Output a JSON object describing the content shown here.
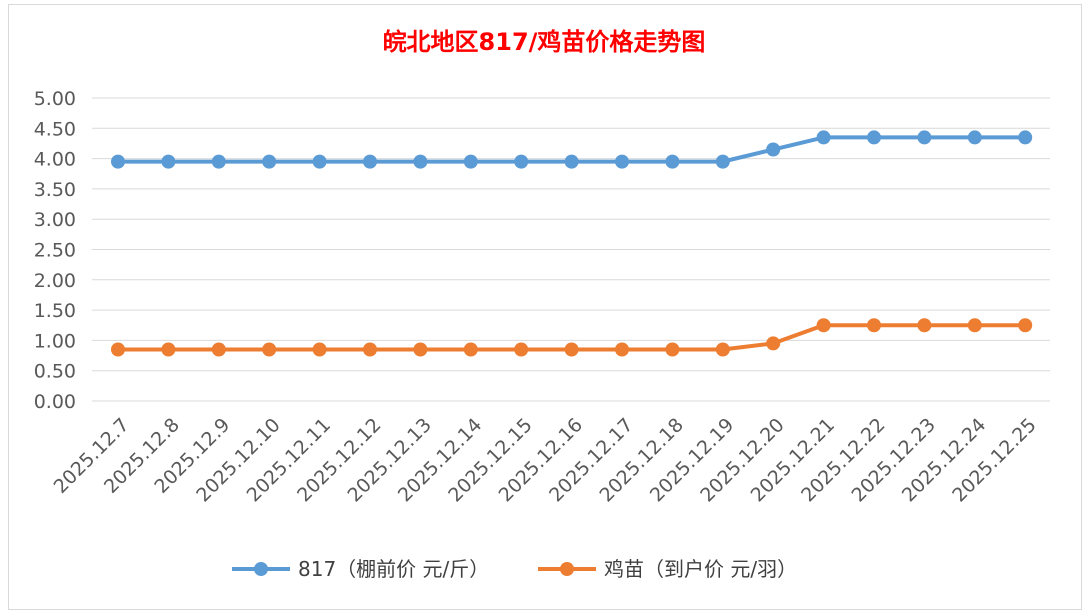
{
  "chart_data": {
    "type": "line",
    "title": "皖北地区817/鸡苗价格走势图",
    "xlabel": "",
    "ylabel": "",
    "ylim": [
      0,
      5
    ],
    "yticks": [
      "0.00",
      "0.50",
      "1.00",
      "1.50",
      "2.00",
      "2.50",
      "3.00",
      "3.50",
      "4.00",
      "4.50",
      "5.00"
    ],
    "grid": true,
    "legend_position": "bottom",
    "categories": [
      "2025.12.7",
      "2025.12.8",
      "2025.12.9",
      "2025.12.10",
      "2025.12.11",
      "2025.12.12",
      "2025.12.13",
      "2025.12.14",
      "2025.12.15",
      "2025.12.16",
      "2025.12.17",
      "2025.12.18",
      "2025.12.19",
      "2025.12.20",
      "2025.12.21",
      "2025.12.22",
      "2025.12.23",
      "2025.12.24",
      "2025.12.25"
    ],
    "series": [
      {
        "name": "817（棚前价 元/斤）",
        "color": "#5b9bd5",
        "values": [
          3.95,
          3.95,
          3.95,
          3.95,
          3.95,
          3.95,
          3.95,
          3.95,
          3.95,
          3.95,
          3.95,
          3.95,
          3.95,
          4.15,
          4.35,
          4.35,
          4.35,
          4.35,
          4.35
        ]
      },
      {
        "name": "鸡苗（到户价 元/羽）",
        "color": "#ed7d31",
        "values": [
          0.85,
          0.85,
          0.85,
          0.85,
          0.85,
          0.85,
          0.85,
          0.85,
          0.85,
          0.85,
          0.85,
          0.85,
          0.85,
          0.95,
          1.25,
          1.25,
          1.25,
          1.25,
          1.25
        ]
      }
    ]
  }
}
